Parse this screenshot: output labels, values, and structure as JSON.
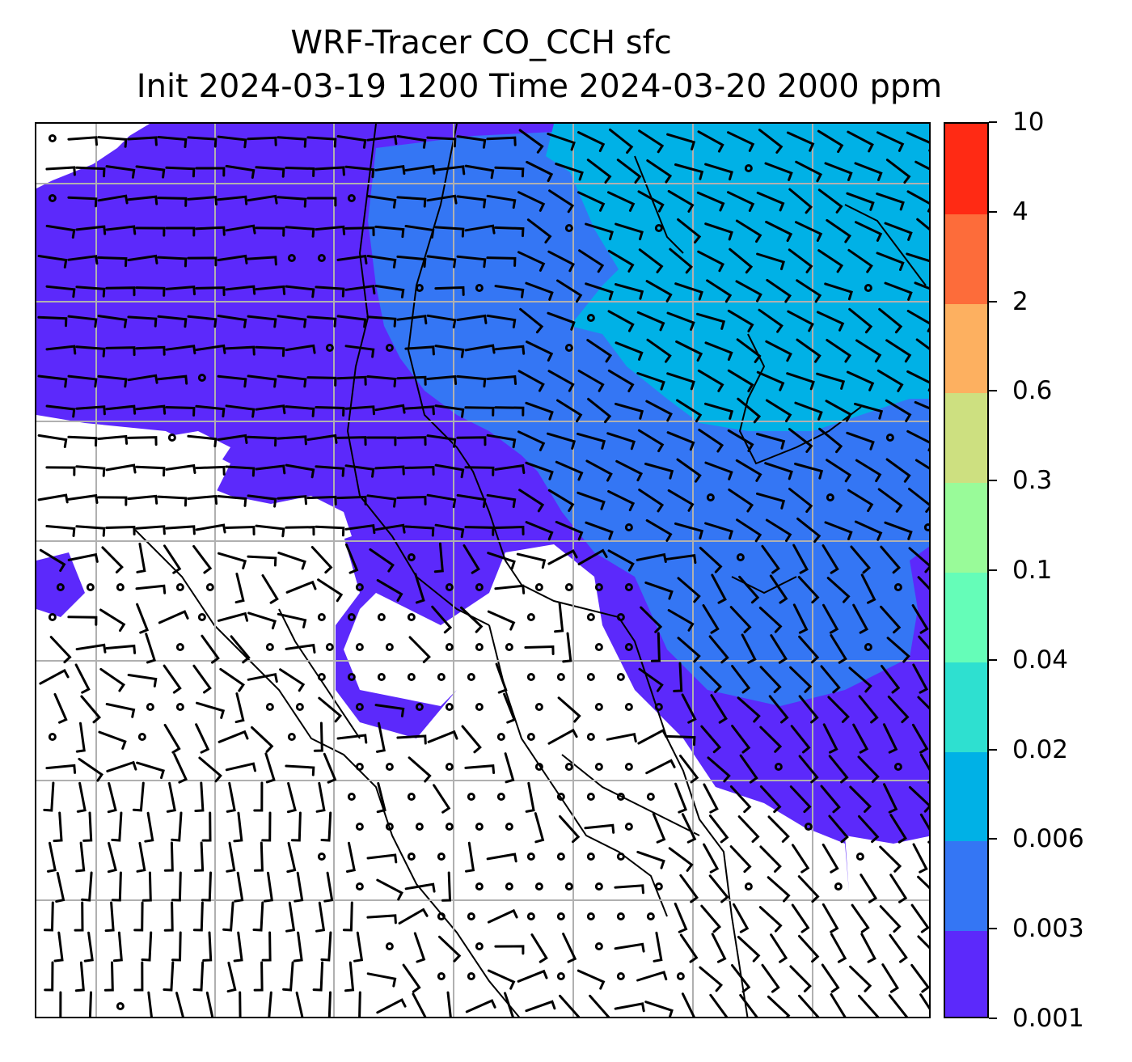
{
  "title": {
    "line1": "WRF-Tracer CO_CCH sfc",
    "line2": "Init 2024-03-19 1200 Time 2024-03-20 2000 ppm"
  },
  "colorbar": {
    "levels": [
      "0.001",
      "0.003",
      "0.006",
      "0.02",
      "0.04",
      "0.1",
      "0.3",
      "0.6",
      "2",
      "4",
      "10"
    ],
    "colors": [
      "#5c29fb",
      "#3476f4",
      "#00b1e6",
      "#2ee0d0",
      "#65fdb8",
      "#99fb99",
      "#cde080",
      "#fdb060",
      "#fd6c3a",
      "#ff2a14"
    ]
  },
  "map": {
    "fill_colors": {
      "low": "#5c29fb",
      "mid": "#3476f4",
      "high": "#00b1e6"
    },
    "gridline_color": "#b0b0b0",
    "coastline_color": "#000000"
  }
}
